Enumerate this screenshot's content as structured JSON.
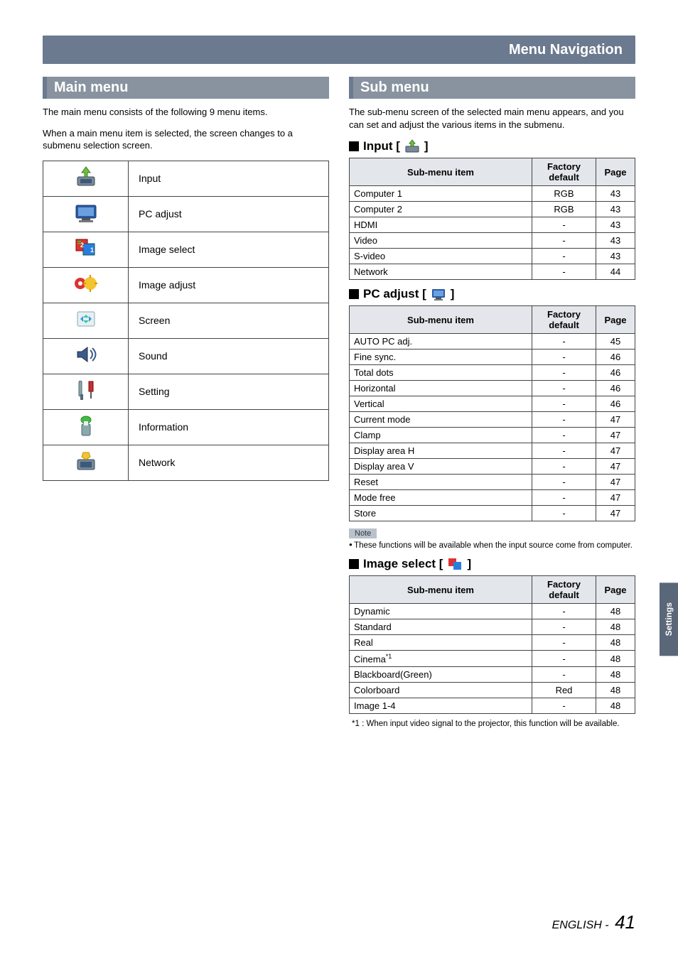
{
  "header": {
    "title": "Menu Navigation"
  },
  "side_tab": "Settings",
  "footer": {
    "lang": "ENGLISH -",
    "page": "41"
  },
  "main_menu": {
    "heading": "Main menu",
    "intro_1": "The main menu consists of the following 9 menu items.",
    "intro_2": "When a main menu item is selected, the screen changes to a submenu selection screen.",
    "items": [
      {
        "label": "Input"
      },
      {
        "label": "PC adjust"
      },
      {
        "label": "Image select"
      },
      {
        "label": "Image adjust"
      },
      {
        "label": "Screen"
      },
      {
        "label": "Sound"
      },
      {
        "label": "Setting"
      },
      {
        "label": "Information"
      },
      {
        "label": "Network"
      }
    ]
  },
  "sub_menu": {
    "heading": "Sub menu",
    "intro": "The sub-menu screen of the selected main menu appears, and you can set and adjust the various items in the submenu.",
    "table_headers": {
      "item": "Sub-menu item",
      "default": "Factory default",
      "page": "Page"
    },
    "input": {
      "title_prefix": "Input [",
      "title_suffix": "]",
      "rows": [
        {
          "item": "Computer 1",
          "default": "RGB",
          "page": "43"
        },
        {
          "item": "Computer 2",
          "default": "RGB",
          "page": "43"
        },
        {
          "item": "HDMI",
          "default": "-",
          "page": "43"
        },
        {
          "item": "Video",
          "default": "-",
          "page": "43"
        },
        {
          "item": "S-video",
          "default": "-",
          "page": "43"
        },
        {
          "item": "Network",
          "default": "-",
          "page": "44"
        }
      ]
    },
    "pc_adjust": {
      "title_prefix": "PC adjust [",
      "title_suffix": "]",
      "rows": [
        {
          "item": "AUTO PC adj.",
          "default": "-",
          "page": "45"
        },
        {
          "item": "Fine sync.",
          "default": "-",
          "page": "46"
        },
        {
          "item": "Total dots",
          "default": "-",
          "page": "46"
        },
        {
          "item": "Horizontal",
          "default": "-",
          "page": "46"
        },
        {
          "item": "Vertical",
          "default": "-",
          "page": "46"
        },
        {
          "item": "Current mode",
          "default": "-",
          "page": "47"
        },
        {
          "item": "Clamp",
          "default": "-",
          "page": "47"
        },
        {
          "item": "Display area H",
          "default": "-",
          "page": "47"
        },
        {
          "item": "Display area V",
          "default": "-",
          "page": "47"
        },
        {
          "item": "Reset",
          "default": "-",
          "page": "47"
        },
        {
          "item": "Mode free",
          "default": "-",
          "page": "47"
        },
        {
          "item": "Store",
          "default": "-",
          "page": "47"
        }
      ],
      "note_label": "Note",
      "note_text": "These functions will be available when the input source come from computer."
    },
    "image_select": {
      "title_prefix": "Image select [",
      "title_suffix": "]",
      "rows": [
        {
          "item": "Dynamic",
          "default": "-",
          "page": "48"
        },
        {
          "item": "Standard",
          "default": "-",
          "page": "48"
        },
        {
          "item": "Real",
          "default": "-",
          "page": "48"
        },
        {
          "item": "Cinema",
          "sup": "*1",
          "default": "-",
          "page": "48"
        },
        {
          "item": "Blackboard(Green)",
          "default": "-",
          "page": "48"
        },
        {
          "item": "Colorboard",
          "default": "Red",
          "page": "48"
        },
        {
          "item": "Image 1-4",
          "default": "-",
          "page": "48"
        }
      ],
      "footnote_prefix": "*1 : ",
      "footnote_text": "When input video signal to the projector, this function will be available."
    }
  },
  "colors": {
    "header_bg": "#6b7a8f",
    "section_bg": "#88939f",
    "th_bg": "#e3e7ec",
    "border": "#444444",
    "sidetab_bg": "#5a6778"
  }
}
